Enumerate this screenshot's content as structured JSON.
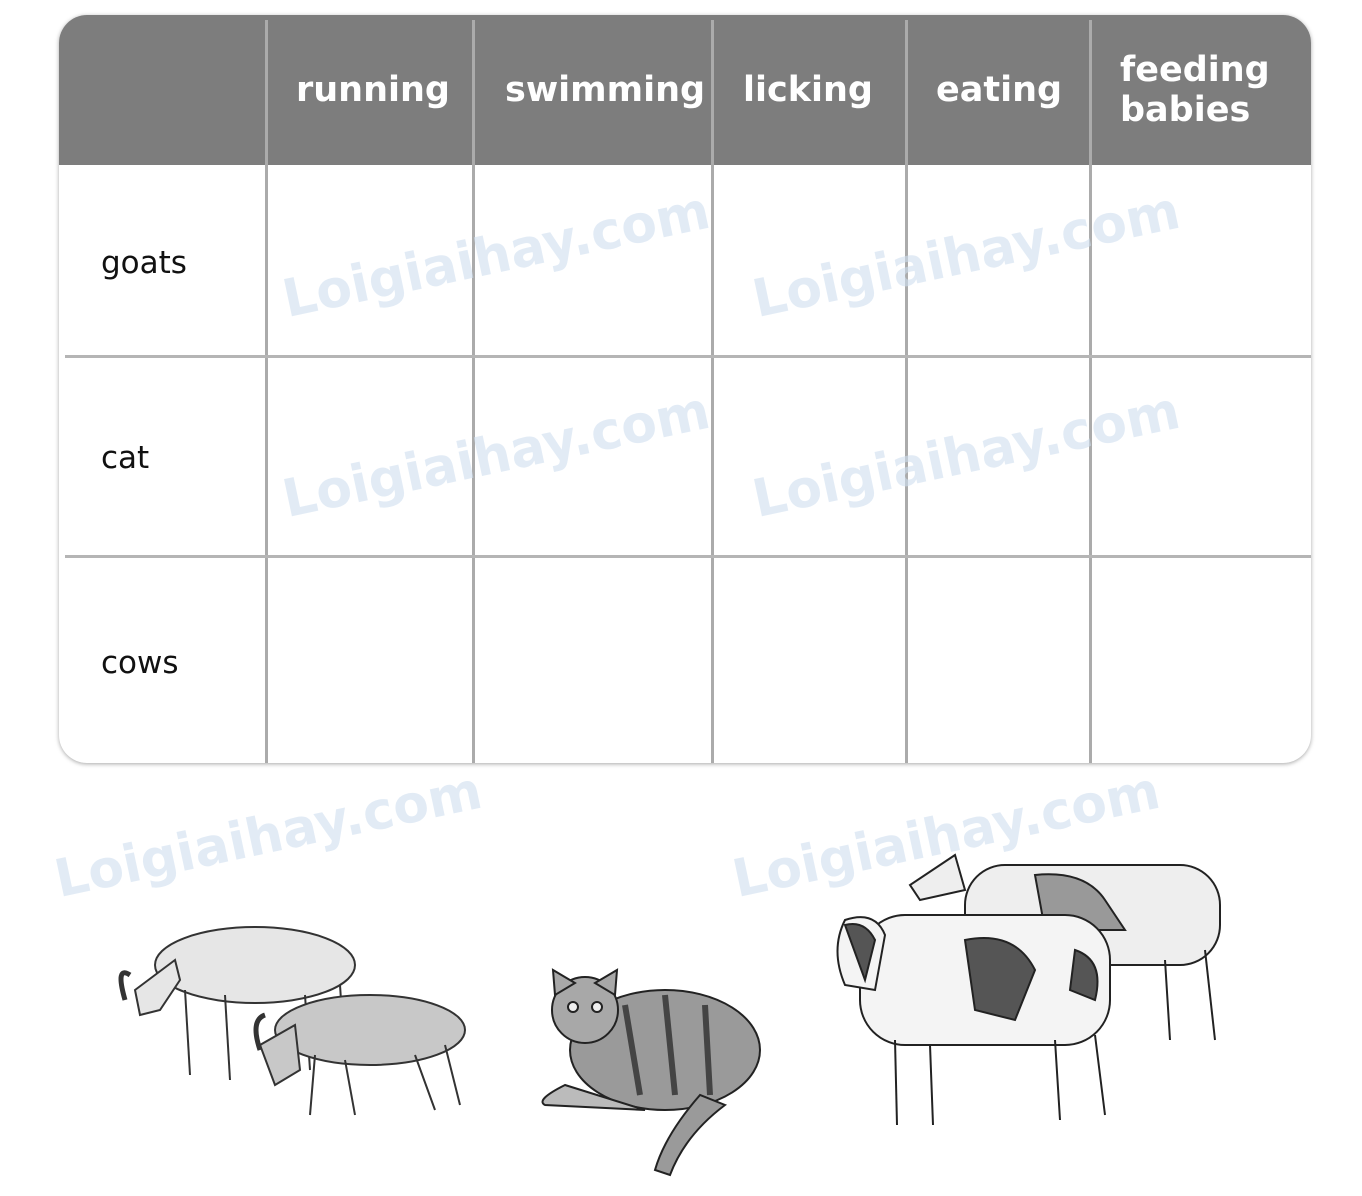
{
  "table": {
    "columns": [
      "",
      "running",
      "swimming",
      "licking",
      "eating",
      "feeding babies"
    ],
    "rows": [
      "goats",
      "cat",
      "cows"
    ]
  },
  "watermark": "Loigiaihay.com",
  "images": [
    "goats-illustration",
    "cat-illustration",
    "cows-illustration"
  ],
  "colors": {
    "header": "#7d7d7d",
    "grid": "#ababab",
    "watermark": "#cfdff0"
  }
}
